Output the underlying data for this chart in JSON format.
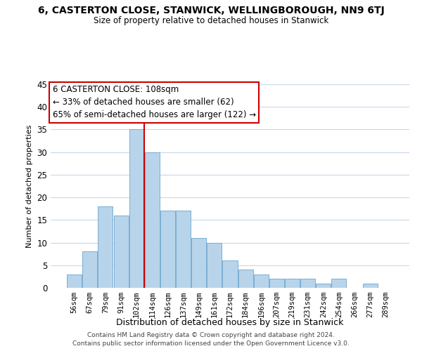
{
  "title": "6, CASTERTON CLOSE, STANWICK, WELLINGBOROUGH, NN9 6TJ",
  "subtitle": "Size of property relative to detached houses in Stanwick",
  "xlabel": "Distribution of detached houses by size in Stanwick",
  "ylabel": "Number of detached properties",
  "bar_color": "#b8d4ea",
  "bar_edge_color": "#7aaed4",
  "bins": [
    "56sqm",
    "67sqm",
    "79sqm",
    "91sqm",
    "102sqm",
    "114sqm",
    "126sqm",
    "137sqm",
    "149sqm",
    "161sqm",
    "172sqm",
    "184sqm",
    "196sqm",
    "207sqm",
    "219sqm",
    "231sqm",
    "242sqm",
    "254sqm",
    "266sqm",
    "277sqm",
    "289sqm"
  ],
  "values": [
    3,
    8,
    18,
    16,
    35,
    30,
    17,
    17,
    11,
    10,
    6,
    4,
    3,
    2,
    2,
    2,
    1,
    2,
    0,
    1,
    0
  ],
  "ylim": [
    0,
    45
  ],
  "vline_bin_idx": 4.5,
  "vline_color": "#cc0000",
  "annotation_title": "6 CASTERTON CLOSE: 108sqm",
  "annotation_line1": "← 33% of detached houses are smaller (62)",
  "annotation_line2": "65% of semi-detached houses are larger (122) →",
  "annotation_box_color": "#ffffff",
  "annotation_box_edge": "#cc0000",
  "footer1": "Contains HM Land Registry data © Crown copyright and database right 2024.",
  "footer2": "Contains public sector information licensed under the Open Government Licence v3.0.",
  "background_color": "#ffffff",
  "grid_color": "#c8d8e8"
}
